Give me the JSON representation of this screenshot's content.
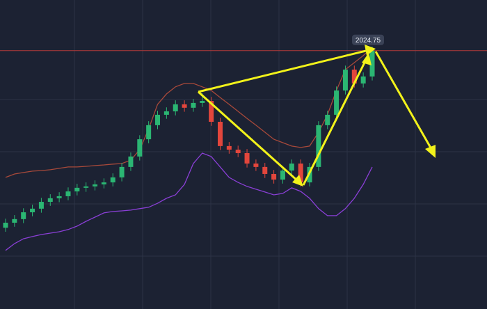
{
  "chart_data": {
    "type": "candlestick",
    "ylim": [
      1896,
      2050
    ],
    "up_color": "#2bb673",
    "down_color": "#e3463c",
    "price_line": 2024.75,
    "price_line_color": "#b33a3a",
    "open": [
      1936.5,
      1939.0,
      1940.8,
      1944.2,
      1946.0,
      1949.4,
      1951.2,
      1952.2,
      1954.6,
      1956.4,
      1957.1,
      1958.1,
      1959.1,
      1961.6,
      1966.8,
      1972.0,
      1980.6,
      1987.6,
      1992.8,
      1994.5,
      1998.0,
      1996.3,
      1998.7,
      1999.7,
      1989.3,
      1977.2,
      1975.4,
      1973.7,
      1968.5,
      1966.8,
      1963.3,
      1960.5,
      1965.0,
      1968.5,
      1959.1,
      1966.8,
      1987.6,
      1992.8,
      2004.9,
      2015.3,
      2008.4,
      2011.9
    ],
    "high": [
      1941.0,
      1942.8,
      1946.2,
      1948.0,
      1951.4,
      1953.2,
      1954.2,
      1956.6,
      1958.4,
      1959.1,
      1960.1,
      1961.1,
      1963.6,
      1968.8,
      1974.0,
      1982.6,
      1989.6,
      1994.8,
      1996.5,
      2000.0,
      2000.0,
      2000.7,
      2003.5,
      2001.7,
      1991.3,
      1979.2,
      1977.4,
      1975.7,
      1970.5,
      1968.8,
      1965.3,
      1967.0,
      1970.5,
      1970.5,
      1968.8,
      1989.6,
      1994.8,
      2006.9,
      2017.3,
      2017.3,
      2013.9,
      2026.75
    ],
    "low": [
      1934.5,
      1937.0,
      1938.8,
      1942.2,
      1944.0,
      1947.4,
      1949.2,
      1950.2,
      1952.6,
      1954.4,
      1955.1,
      1956.1,
      1957.1,
      1959.6,
      1964.8,
      1970.0,
      1978.6,
      1985.6,
      1990.8,
      1992.5,
      1994.3,
      1994.3,
      1996.7,
      1987.3,
      1975.2,
      1973.4,
      1971.7,
      1966.5,
      1964.8,
      1961.3,
      1958.5,
      1958.5,
      1963.0,
      1957.1,
      1957.1,
      1964.8,
      1985.6,
      1990.8,
      2002.9,
      2006.4,
      2006.4,
      2009.9
    ],
    "close": [
      1939.0,
      1940.8,
      1944.2,
      1946.0,
      1949.4,
      1951.2,
      1952.2,
      1954.6,
      1956.4,
      1957.1,
      1958.1,
      1959.1,
      1961.6,
      1966.8,
      1972.0,
      1980.6,
      1987.6,
      1992.8,
      1994.5,
      1998.0,
      1996.3,
      1998.7,
      1999.7,
      1989.3,
      1977.2,
      1975.4,
      1973.7,
      1968.5,
      1966.8,
      1963.3,
      1960.5,
      1965.0,
      1968.5,
      1959.1,
      1966.8,
      1987.6,
      1992.8,
      2004.9,
      2015.3,
      2008.4,
      2011.9,
      2024.75
    ],
    "series": [
      {
        "color": "#a8493a",
        "values": [
          1961.6,
          1963.3,
          1964.0,
          1964.7,
          1965.0,
          1965.4,
          1966.1,
          1966.8,
          1966.8,
          1967.1,
          1967.5,
          1967.8,
          1968.2,
          1968.5,
          1970.2,
          1975.4,
          1985.8,
          1998.0,
          2003.2,
          2006.7,
          2008.4,
          2008.4,
          2006.7,
          2004.9,
          2001.4,
          1998.0,
          1994.5,
          1991.0,
          1987.6,
          1984.1,
          1980.6,
          1978.9,
          1977.2,
          1976.5,
          1977.2,
          1984.1,
          1992.8,
          2004.9,
          2015.3,
          2018.8,
          2022.3,
          2026.4
        ]
      },
      {
        "color": "#8a3fd6",
        "values": [
          1925.2,
          1928.6,
          1931.0,
          1932.1,
          1933.1,
          1933.8,
          1934.5,
          1935.6,
          1937.3,
          1939.7,
          1941.8,
          1943.9,
          1944.6,
          1944.9,
          1945.3,
          1946.0,
          1946.7,
          1948.7,
          1951.2,
          1952.9,
          1958.1,
          1968.5,
          1973.7,
          1972.0,
          1966.8,
          1961.6,
          1959.1,
          1957.1,
          1955.7,
          1954.3,
          1952.9,
          1953.6,
          1956.4,
          1954.6,
          1951.2,
          1946.0,
          1942.5,
          1942.5,
          1946.0,
          1951.2,
          1958.1,
          1966.8
        ]
      }
    ]
  }
}
